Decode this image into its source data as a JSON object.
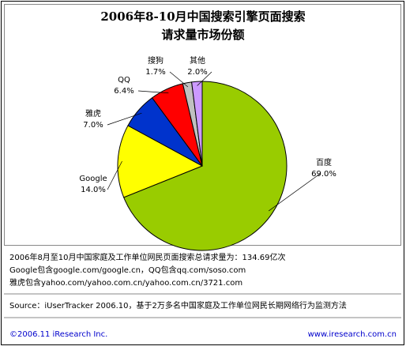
{
  "chart_data": {
    "type": "pie",
    "title": [
      "2006年8-10月中国搜索引擎页面搜索",
      "请求量市场份额"
    ],
    "categories": [
      "百度",
      "Google",
      "雅虎",
      "QQ",
      "搜狗",
      "其他"
    ],
    "values": [
      69.0,
      14.0,
      7.0,
      6.4,
      1.7,
      2.0
    ],
    "value_labels": [
      "69.0%",
      "14.0%",
      "7.0%",
      "6.4%",
      "1.7%",
      "2.0%"
    ],
    "colors": [
      "#99cc00",
      "#ffff00",
      "#0033cc",
      "#ff0000",
      "#c0c0c0",
      "#cc99ff"
    ],
    "notes": [
      "2006年8月至10月中国家庭及工作单位网民页面搜索总请求量为：134.69亿次",
      "Google包含google.com/google.cn，QQ包含qq.com/soso.com",
      "雅虎包含yahoo.com/yahoo.com.cn/yahoo.com.cn/3721.com"
    ],
    "source": "Source：iUserTracker 2006.10，基于2万多名中国家庭及工作单位网民长期网络行为监测方法",
    "footer_left": "©2006.11 iResearch Inc.",
    "footer_right": "www.iresearch.com.cn"
  }
}
